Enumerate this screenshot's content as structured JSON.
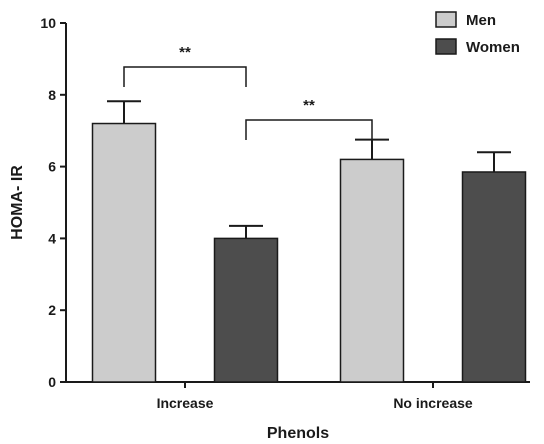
{
  "chart_data": {
    "type": "bar",
    "xlabel": "Phenols",
    "ylabel": "HOMA- IR",
    "categories": [
      "Increase",
      "No increase"
    ],
    "ylim": [
      0,
      10
    ],
    "yticks": [
      0,
      2,
      4,
      6,
      8,
      10
    ],
    "grid": false,
    "legend_position": "top-right",
    "series": [
      {
        "name": "Men",
        "values": [
          7.2,
          6.2
        ],
        "errors": [
          0.62,
          0.55
        ],
        "color": "#cccccc"
      },
      {
        "name": "Women",
        "values": [
          4.0,
          5.85
        ],
        "errors": [
          0.35,
          0.55
        ],
        "color": "#4d4d4d"
      }
    ],
    "annotations": [
      {
        "text": "**",
        "from": {
          "category": "Increase",
          "series": "Men"
        },
        "to": {
          "category": "Increase",
          "series": "Women"
        }
      },
      {
        "text": "**",
        "from": {
          "category": "Increase",
          "series": "Women"
        },
        "to": {
          "category": "No increase",
          "series": "Men"
        }
      }
    ]
  }
}
